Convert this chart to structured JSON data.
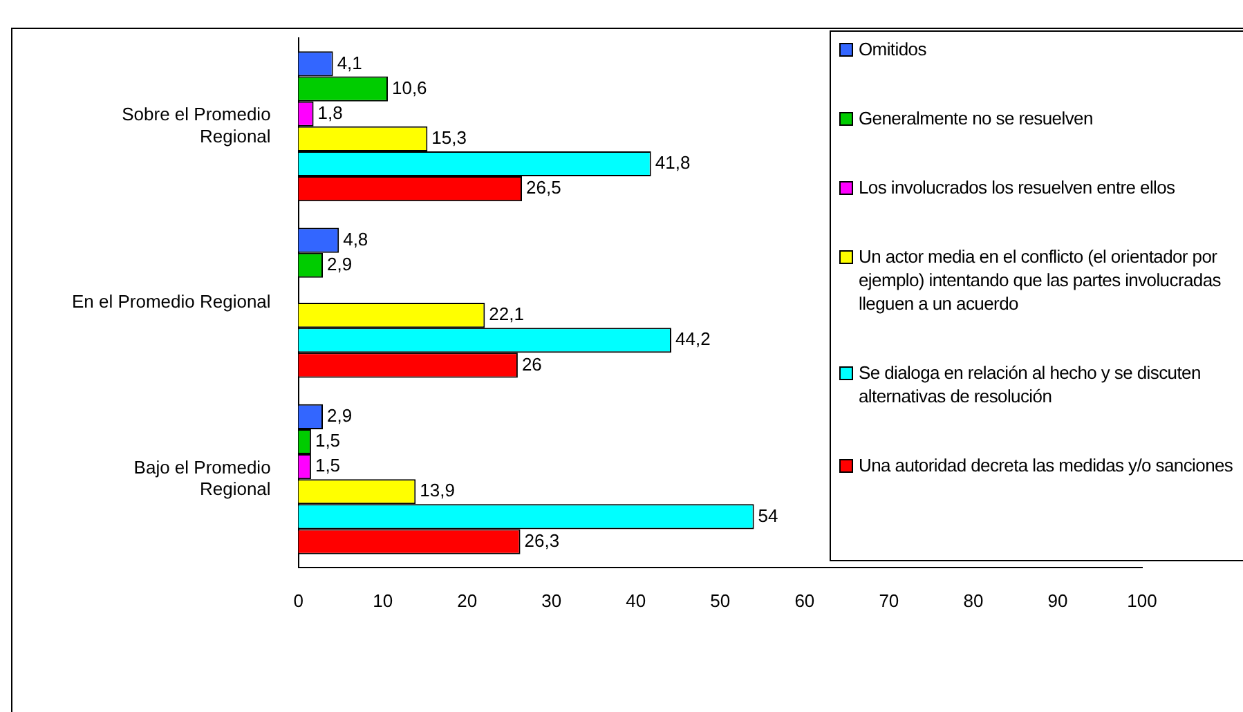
{
  "chart_data": {
    "type": "bar",
    "orientation": "horizontal",
    "categories": [
      "Sobre el Promedio Regional",
      "En el Promedio Regional",
      "Bajo el Promedio Regional"
    ],
    "series": [
      {
        "name": "Omitidos",
        "color": "#3366ff",
        "values": [
          4.1,
          4.8,
          2.9
        ],
        "value_labels": [
          "4,1",
          "4,8",
          "2,9"
        ]
      },
      {
        "name": "Generalmente no se resuelven",
        "color": "#00cc00",
        "values": [
          10.6,
          2.9,
          1.5
        ],
        "value_labels": [
          "10,6",
          "2,9",
          "1,5"
        ]
      },
      {
        "name": "Los involucrados los resuelven entre ellos",
        "color": "#ff00ff",
        "values": [
          1.8,
          null,
          1.5
        ],
        "value_labels": [
          "1,8",
          null,
          "1,5"
        ]
      },
      {
        "name": "Un actor media en el conflicto (el orientador por ejemplo) intentando que las partes involucradas lleguen a un acuerdo",
        "color": "#ffff00",
        "values": [
          15.3,
          22.1,
          13.9
        ],
        "value_labels": [
          "15,3",
          "22,1",
          "13,9"
        ]
      },
      {
        "name": "Se dialoga  en relación al hecho y se discuten alternativas de resolución",
        "color": "#00ffff",
        "values": [
          41.8,
          44.2,
          54
        ],
        "value_labels": [
          "41,8",
          "44,2",
          "54"
        ]
      },
      {
        "name": "Una autoridad decreta las medidas y/o sanciones",
        "color": "#ff0000",
        "values": [
          26.5,
          26,
          26.3
        ],
        "value_labels": [
          "26,5",
          "26",
          "26,3"
        ]
      }
    ],
    "xlim": [
      0,
      100
    ],
    "xticks": [
      0,
      10,
      20,
      30,
      40,
      50,
      60,
      70,
      80,
      90,
      100
    ],
    "grid": false,
    "legend": "right"
  }
}
